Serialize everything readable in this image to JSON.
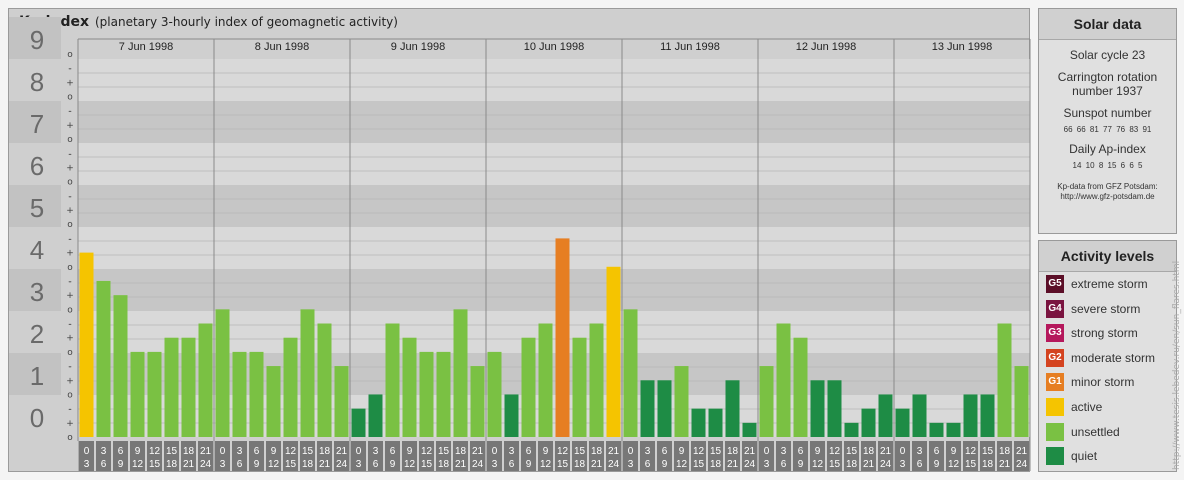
{
  "header": {
    "title": "Kp-index",
    "subtitle": "(planetary 3-hourly index of geomagnetic activity)"
  },
  "chart_data": {
    "type": "bar",
    "title": "Kp-index",
    "subtitle": "(planetary 3-hourly index of geomagnetic activity)",
    "ylim": [
      0,
      9
    ],
    "y_ticks": [
      "0",
      "1",
      "2",
      "3",
      "4",
      "5",
      "6",
      "7",
      "8",
      "9"
    ],
    "sub_ticks": [
      "o",
      "+",
      "-"
    ],
    "days": [
      "7 Jun 1998",
      "8 Jun 1998",
      "9 Jun 1998",
      "10 Jun 1998",
      "11 Jun 1998",
      "12 Jun 1998",
      "13 Jun 1998"
    ],
    "interval_start": [
      "0",
      "3",
      "6",
      "9",
      "12",
      "15",
      "18",
      "21"
    ],
    "interval_end": [
      "3",
      "6",
      "9",
      "12",
      "15",
      "18",
      "21",
      "24"
    ],
    "values": [
      [
        4.333,
        3.667,
        3.333,
        2.0,
        2.0,
        2.333,
        2.333,
        2.667
      ],
      [
        3.0,
        2.0,
        2.0,
        1.667,
        2.333,
        3.0,
        2.667,
        1.667
      ],
      [
        0.667,
        1.0,
        2.667,
        2.333,
        2.0,
        2.0,
        3.0,
        1.667
      ],
      [
        2.0,
        1.0,
        2.333,
        2.667,
        4.667,
        2.333,
        2.667,
        4.0
      ],
      [
        3.0,
        1.333,
        1.333,
        1.667,
        0.667,
        0.667,
        1.333,
        0.333
      ],
      [
        1.667,
        2.667,
        2.333,
        1.333,
        1.333,
        0.333,
        0.667,
        1.0
      ],
      [
        0.667,
        1.0,
        0.333,
        0.333,
        1.0,
        1.0,
        2.667,
        1.667
      ]
    ],
    "colors": {
      "quiet": "#1e8c45",
      "unsettled": "#7ac143",
      "active": "#f5c400",
      "minor_storm": "#e67e22"
    },
    "grid": true
  },
  "solar": {
    "title": "Solar data",
    "cycle": "Solar cycle 23",
    "carrington_line1": "Carrington rotation",
    "carrington_line2": "number 1937",
    "sunspot_title": "Sunspot number",
    "sunspot": [
      "66",
      "66",
      "81",
      "77",
      "76",
      "83",
      "91"
    ],
    "ap_title": "Daily Ap-index",
    "ap": [
      "14",
      "10",
      "8",
      "15",
      "6",
      "6",
      "5"
    ],
    "source_line1": "Kp-data from GFZ Potsdam:",
    "source_line2": "http://www.gfz-potsdam.de"
  },
  "levels": {
    "title": "Activity levels",
    "items": [
      {
        "badge": "G5",
        "label": "extreme storm",
        "color": "#5c0f28"
      },
      {
        "badge": "G4",
        "label": "severe storm",
        "color": "#7a1440"
      },
      {
        "badge": "G3",
        "label": "strong storm",
        "color": "#b5185c"
      },
      {
        "badge": "G2",
        "label": "moderate storm",
        "color": "#d4431f"
      },
      {
        "badge": "G1",
        "label": "minor storm",
        "color": "#e67e22"
      },
      {
        "badge": "",
        "label": "active",
        "color": "#f5c400"
      },
      {
        "badge": "",
        "label": "unsettled",
        "color": "#7ac143"
      },
      {
        "badge": "",
        "label": "quiet",
        "color": "#1e8c45"
      }
    ]
  },
  "credit": "http://www.tesis.lebedev.ru/en/sun_flares.html"
}
